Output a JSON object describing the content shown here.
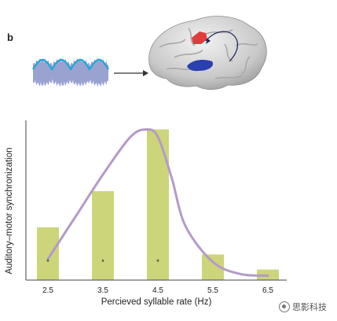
{
  "panel_label": "b",
  "watermark": "思影科技",
  "icons": [
    "waveform-icon",
    "arrow-right-icon",
    "brain-icon",
    "wechat-icon"
  ],
  "colors": {
    "bar": "#cdd57a",
    "curve": "#b49ac8",
    "waveform_fill": "#9aa3cf",
    "waveform_line": "#1ea6d8",
    "brain": "#d4d4d4",
    "brain_motor_region": "#e23b3b",
    "brain_auditory_region": "#2b3fb0"
  },
  "chart_data": {
    "type": "bar",
    "categories": [
      "2.5",
      "3.5",
      "4.5",
      "5.5",
      "6.5"
    ],
    "values": [
      0.35,
      0.59,
      1.0,
      0.17,
      0.07
    ],
    "significance": [
      "*",
      "*",
      "*",
      "",
      ""
    ],
    "curve": {
      "x": [
        2.5,
        3.0,
        3.5,
        4.0,
        4.3,
        4.5,
        4.75,
        5.0,
        5.5,
        6.0,
        6.5
      ],
      "y": [
        0.14,
        0.42,
        0.7,
        0.95,
        1.0,
        0.95,
        0.68,
        0.36,
        0.12,
        0.04,
        0.03
      ]
    },
    "xlabel": "Percieved syllable rate (Hz)",
    "ylabel": "Auditory–motor synchronization",
    "ylim": [
      0,
      1.06
    ],
    "grid": false,
    "legend": "none"
  }
}
